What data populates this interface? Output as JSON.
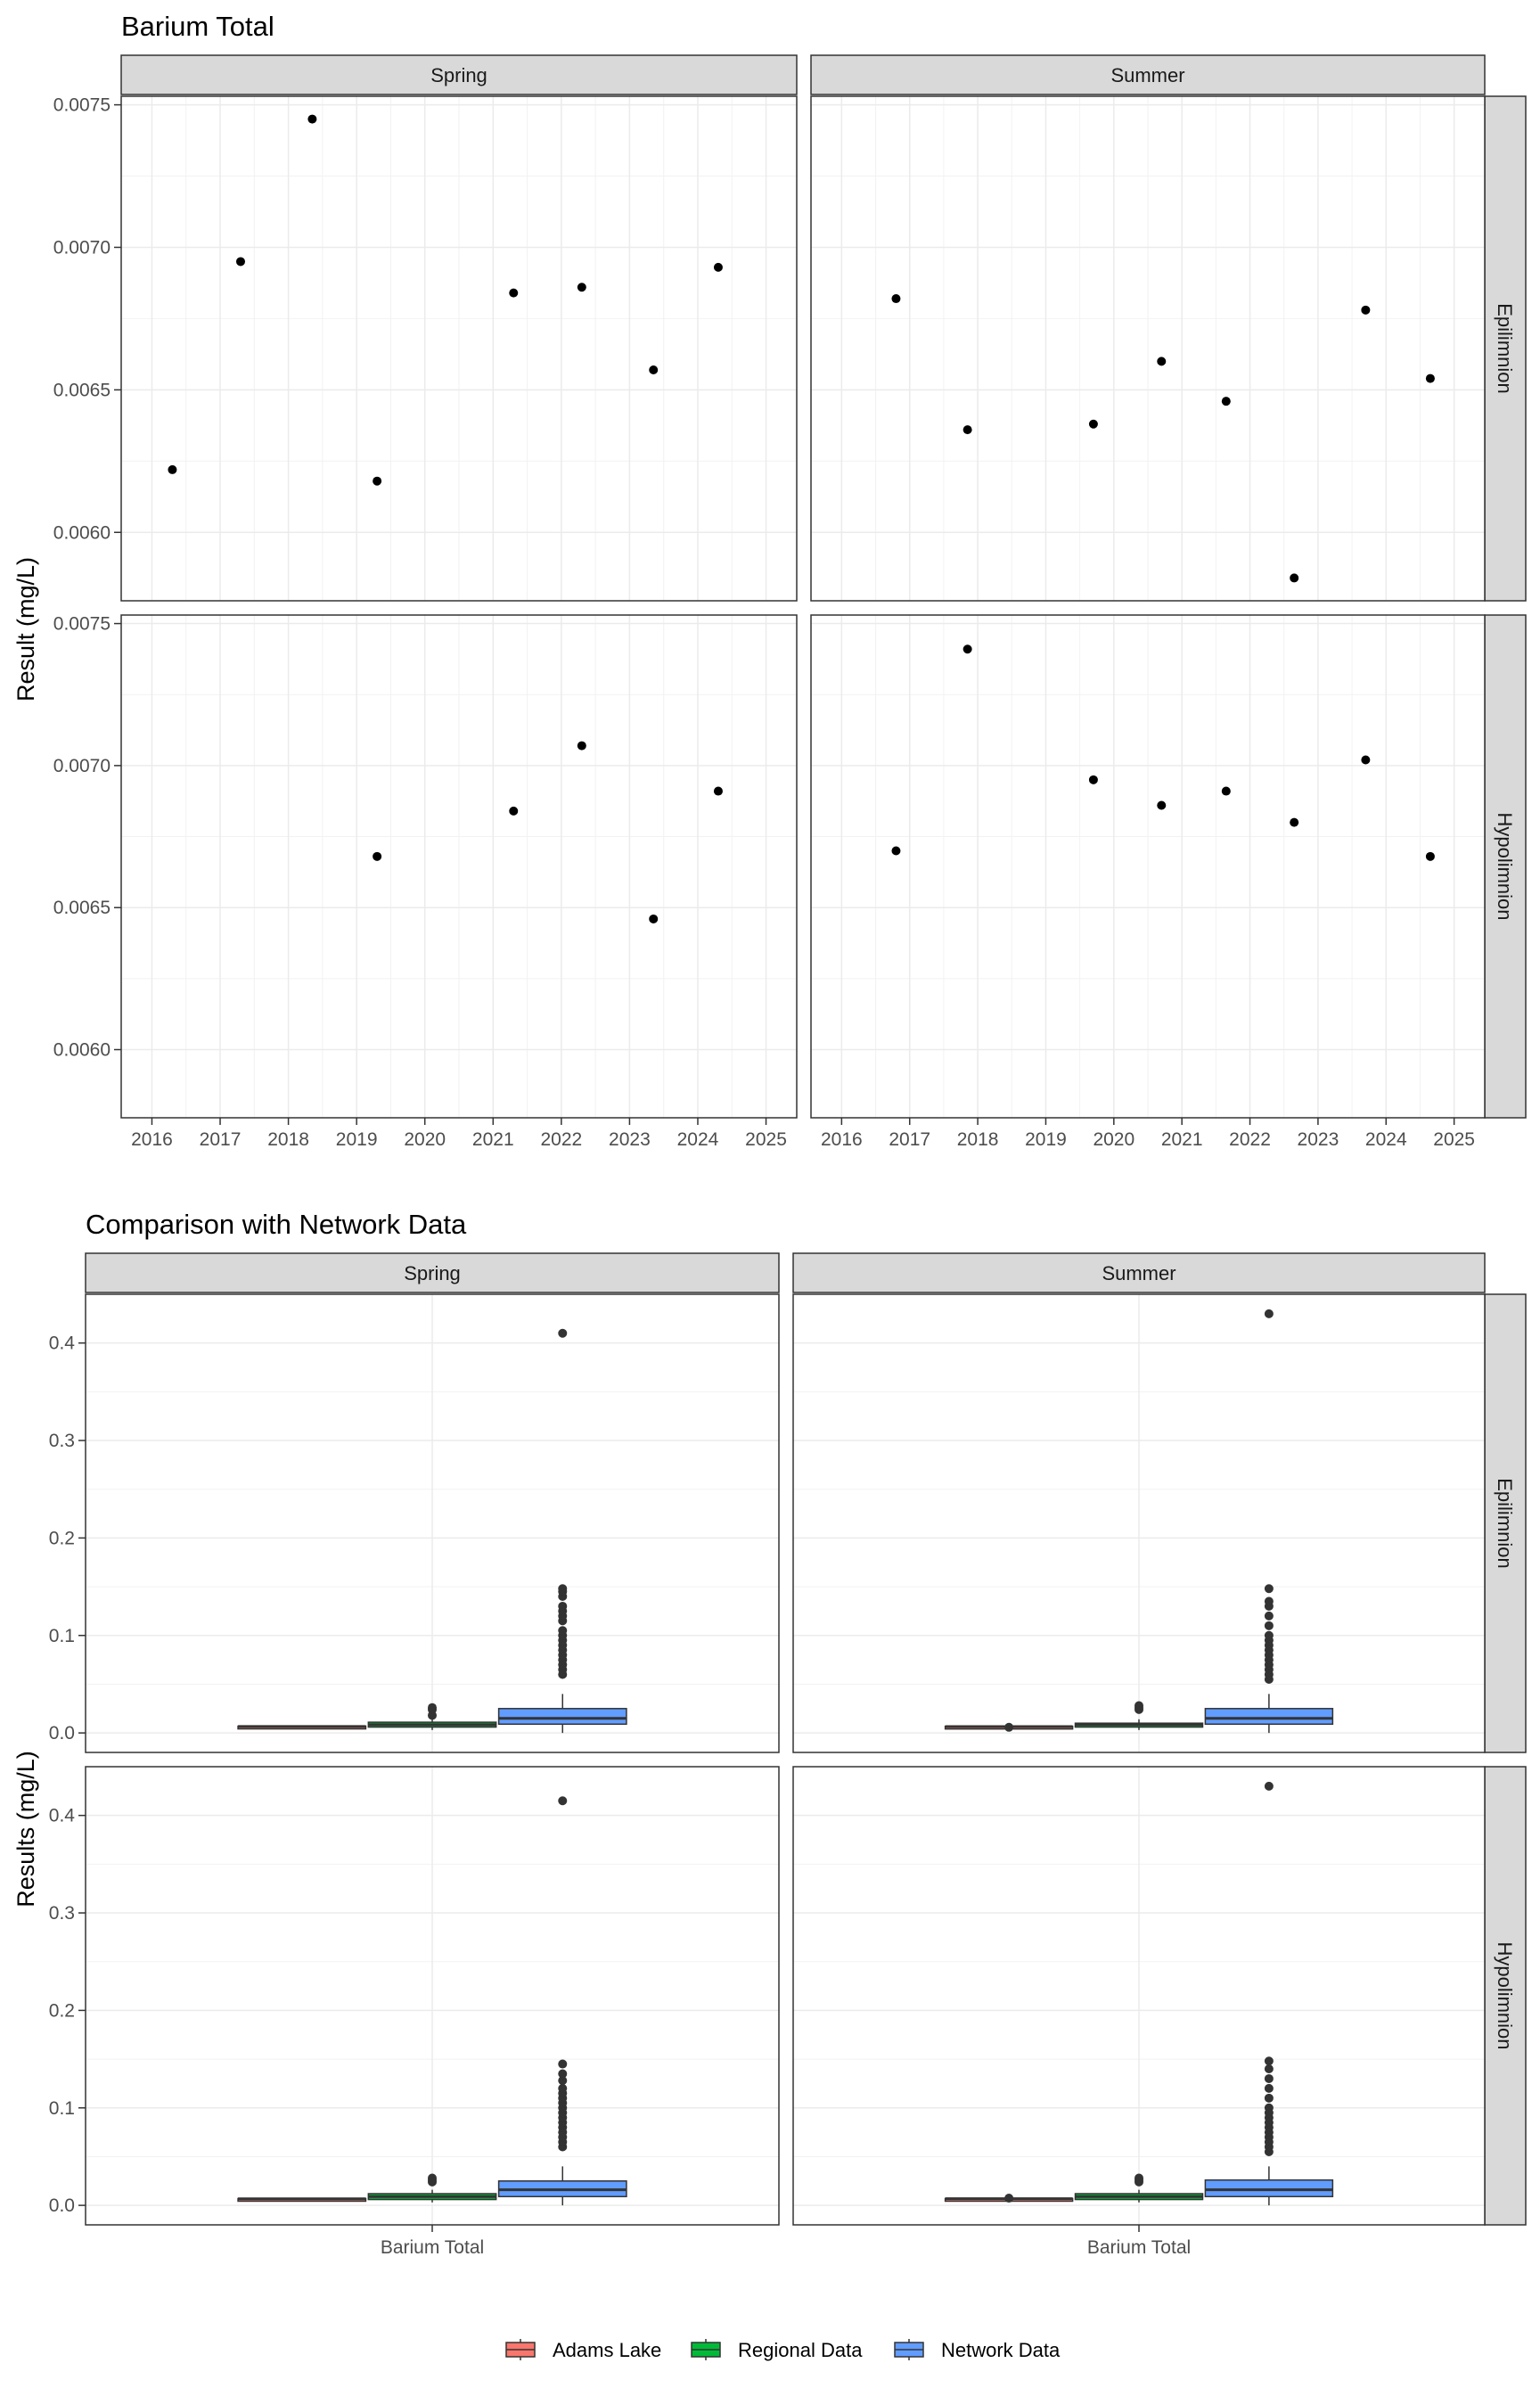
{
  "chart_data": [
    {
      "type": "scatter",
      "title": "Barium Total",
      "ylabel": "Result (mg/L)",
      "xlabel": "",
      "facet_cols": [
        "Spring",
        "Summer"
      ],
      "facet_rows": [
        "Epilimnion",
        "Hypolimnion"
      ],
      "xlim": [
        2015.55,
        2025.45
      ],
      "xticks": [
        2016,
        2017,
        2018,
        2019,
        2020,
        2021,
        2022,
        2023,
        2024,
        2025
      ],
      "xtick_labels": [
        "2016",
        "2017",
        "2018",
        "2019",
        "2020",
        "2021",
        "2022",
        "2023",
        "2024",
        "2025"
      ],
      "ylim": [
        0.00576,
        0.00753
      ],
      "yticks": [
        0.006,
        0.0065,
        0.007,
        0.0075
      ],
      "ytick_labels": [
        "0.0060",
        "0.0065",
        "0.0070",
        "0.0075"
      ],
      "grid": true,
      "panels": [
        {
          "col": "Spring",
          "row": "Epilimnion",
          "points": [
            {
              "x": 2016.3,
              "y": 0.00622
            },
            {
              "x": 2017.3,
              "y": 0.00695
            },
            {
              "x": 2018.35,
              "y": 0.00745
            },
            {
              "x": 2019.3,
              "y": 0.00618
            },
            {
              "x": 2021.3,
              "y": 0.00684
            },
            {
              "x": 2022.3,
              "y": 0.00686
            },
            {
              "x": 2023.35,
              "y": 0.00657
            },
            {
              "x": 2024.3,
              "y": 0.00693
            }
          ]
        },
        {
          "col": "Summer",
          "row": "Epilimnion",
          "points": [
            {
              "x": 2016.8,
              "y": 0.00682
            },
            {
              "x": 2017.85,
              "y": 0.00636
            },
            {
              "x": 2019.7,
              "y": 0.00638
            },
            {
              "x": 2020.7,
              "y": 0.0066
            },
            {
              "x": 2021.65,
              "y": 0.00646
            },
            {
              "x": 2022.65,
              "y": 0.00584
            },
            {
              "x": 2023.7,
              "y": 0.00678
            },
            {
              "x": 2024.65,
              "y": 0.00654
            }
          ]
        },
        {
          "col": "Spring",
          "row": "Hypolimnion",
          "points": [
            {
              "x": 2019.3,
              "y": 0.00668
            },
            {
              "x": 2021.3,
              "y": 0.00684
            },
            {
              "x": 2022.3,
              "y": 0.00707
            },
            {
              "x": 2023.35,
              "y": 0.00646
            },
            {
              "x": 2024.3,
              "y": 0.00691
            }
          ]
        },
        {
          "col": "Summer",
          "row": "Hypolimnion",
          "points": [
            {
              "x": 2016.8,
              "y": 0.0067
            },
            {
              "x": 2017.85,
              "y": 0.00741
            },
            {
              "x": 2019.7,
              "y": 0.00695
            },
            {
              "x": 2020.7,
              "y": 0.00686
            },
            {
              "x": 2021.65,
              "y": 0.00691
            },
            {
              "x": 2022.65,
              "y": 0.0068
            },
            {
              "x": 2023.7,
              "y": 0.00702
            },
            {
              "x": 2024.65,
              "y": 0.00668
            }
          ]
        }
      ]
    },
    {
      "type": "box",
      "title": "Comparison with Network Data",
      "ylabel": "Results (mg/L)",
      "xlabel": "",
      "category": "Barium Total",
      "facet_cols": [
        "Spring",
        "Summer"
      ],
      "facet_rows": [
        "Epilimnion",
        "Hypolimnion"
      ],
      "ylim": [
        -0.02,
        0.45
      ],
      "yticks": [
        0.0,
        0.1,
        0.2,
        0.3,
        0.4
      ],
      "ytick_labels": [
        "0.0",
        "0.1",
        "0.2",
        "0.3",
        "0.4"
      ],
      "grid": true,
      "legend": {
        "position": "bottom",
        "entries": [
          "Adams Lake",
          "Regional Data",
          "Network Data"
        ]
      },
      "series_colors": {
        "Adams Lake": "#F8766D",
        "Regional Data": "#00BA38",
        "Network Data": "#619CFF"
      },
      "panels": [
        {
          "col": "Spring",
          "row": "Epilimnion",
          "boxes": [
            {
              "group": "Adams Lake",
              "min": 0.0062,
              "q1": 0.0063,
              "median": 0.0066,
              "q3": 0.0069,
              "max": 0.0075,
              "outliers": []
            },
            {
              "group": "Regional Data",
              "min": 0.003,
              "q1": 0.006,
              "median": 0.0085,
              "q3": 0.011,
              "max": 0.014,
              "outliers": [
                0.018,
                0.024,
                0.026
              ]
            },
            {
              "group": "Network Data",
              "min": 0.0,
              "q1": 0.009,
              "median": 0.015,
              "q3": 0.025,
              "max": 0.04,
              "outliers": [
                0.06,
                0.065,
                0.07,
                0.075,
                0.08,
                0.085,
                0.09,
                0.095,
                0.1,
                0.105,
                0.115,
                0.12,
                0.125,
                0.13,
                0.14,
                0.145,
                0.148,
                0.41
              ]
            }
          ]
        },
        {
          "col": "Summer",
          "row": "Epilimnion",
          "boxes": [
            {
              "group": "Adams Lake",
              "min": 0.0058,
              "q1": 0.0063,
              "median": 0.0065,
              "q3": 0.0068,
              "max": 0.0069,
              "outliers": [
                0.0058
              ]
            },
            {
              "group": "Regional Data",
              "min": 0.003,
              "q1": 0.006,
              "median": 0.0085,
              "q3": 0.01,
              "max": 0.014,
              "outliers": [
                0.024,
                0.026,
                0.028
              ]
            },
            {
              "group": "Network Data",
              "min": 0.0,
              "q1": 0.009,
              "median": 0.015,
              "q3": 0.025,
              "max": 0.04,
              "outliers": [
                0.055,
                0.06,
                0.065,
                0.07,
                0.075,
                0.08,
                0.085,
                0.09,
                0.095,
                0.1,
                0.11,
                0.12,
                0.13,
                0.135,
                0.148,
                0.43
              ]
            }
          ]
        },
        {
          "col": "Spring",
          "row": "Hypolimnion",
          "boxes": [
            {
              "group": "Adams Lake",
              "min": 0.0065,
              "q1": 0.0067,
              "median": 0.0068,
              "q3": 0.007,
              "max": 0.0071,
              "outliers": []
            },
            {
              "group": "Regional Data",
              "min": 0.003,
              "q1": 0.006,
              "median": 0.009,
              "q3": 0.012,
              "max": 0.016,
              "outliers": [
                0.024,
                0.026,
                0.028
              ]
            },
            {
              "group": "Network Data",
              "min": 0.0,
              "q1": 0.009,
              "median": 0.016,
              "q3": 0.025,
              "max": 0.04,
              "outliers": [
                0.06,
                0.065,
                0.07,
                0.075,
                0.08,
                0.085,
                0.09,
                0.095,
                0.1,
                0.105,
                0.11,
                0.115,
                0.12,
                0.128,
                0.135,
                0.145,
                0.415
              ]
            }
          ]
        },
        {
          "col": "Summer",
          "row": "Hypolimnion",
          "boxes": [
            {
              "group": "Adams Lake",
              "min": 0.0067,
              "q1": 0.0068,
              "median": 0.0069,
              "q3": 0.007,
              "max": 0.0074,
              "outliers": [
                0.0074
              ]
            },
            {
              "group": "Regional Data",
              "min": 0.003,
              "q1": 0.006,
              "median": 0.009,
              "q3": 0.012,
              "max": 0.016,
              "outliers": [
                0.024,
                0.026,
                0.028
              ]
            },
            {
              "group": "Network Data",
              "min": 0.0,
              "q1": 0.009,
              "median": 0.016,
              "q3": 0.026,
              "max": 0.04,
              "outliers": [
                0.055,
                0.06,
                0.065,
                0.07,
                0.075,
                0.08,
                0.085,
                0.09,
                0.095,
                0.1,
                0.11,
                0.12,
                0.13,
                0.14,
                0.148,
                0.43
              ]
            }
          ]
        }
      ]
    }
  ]
}
